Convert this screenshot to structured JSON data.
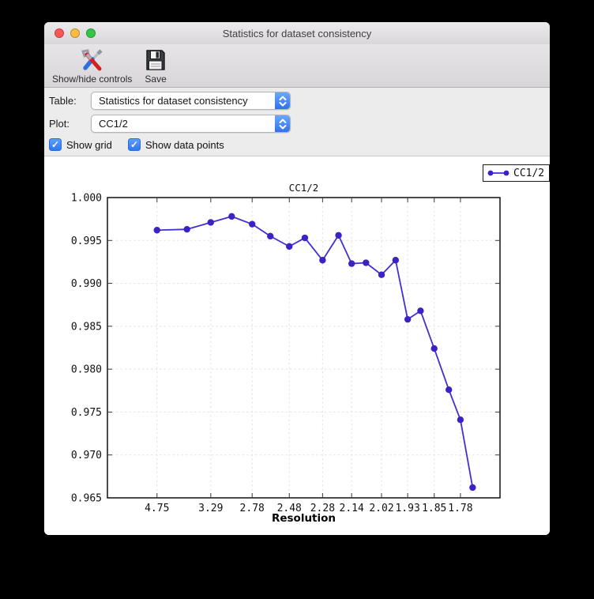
{
  "window": {
    "title": "Statistics for dataset consistency"
  },
  "toolbar": {
    "buttons": [
      {
        "label": "Show/hide controls",
        "icon": "tools-icon"
      },
      {
        "label": "Save",
        "icon": "floppy-disk-icon"
      }
    ]
  },
  "controls": {
    "table": {
      "label": "Table:",
      "value": "Statistics for dataset consistency"
    },
    "plot": {
      "label": "Plot:",
      "value": "CC1/2"
    },
    "checkboxes": [
      {
        "label": "Show grid",
        "checked": true
      },
      {
        "label": "Show data points",
        "checked": true
      }
    ]
  },
  "colors": {
    "line": "#4130d0",
    "marker": "#3a22c4",
    "grid": "#e3e3e3",
    "tick": "#3a3a3a",
    "frame": "#000000",
    "accent_blue": "#3072ef"
  },
  "chart_data": {
    "type": "line",
    "title": "CC1/2",
    "xlabel": "Resolution",
    "legend": {
      "label": "CC1/2",
      "position": "top-right-outside"
    },
    "grid": true,
    "markers": true,
    "x_axis_scale": "1/d^2",
    "x_range_inv_d2": [
      0.0,
      0.351
    ],
    "ylim": [
      0.965,
      1.0
    ],
    "y_ticks": [
      "1.000",
      "0.995",
      "0.990",
      "0.985",
      "0.980",
      "0.975",
      "0.970",
      "0.965"
    ],
    "x_ticks": {
      "labels": [
        "4.75",
        "3.29",
        "2.78",
        "2.48",
        "2.28",
        "2.14",
        "2.02",
        "1.93",
        "1.85",
        "1.78"
      ],
      "resolutions": [
        4.75,
        3.29,
        2.78,
        2.48,
        2.28,
        2.14,
        2.02,
        1.93,
        1.85,
        1.78
      ]
    },
    "series": [
      {
        "name": "CC1/2",
        "x_resolution": [
          4.75,
          3.75,
          3.29,
          3.0,
          2.78,
          2.62,
          2.48,
          2.38,
          2.28,
          2.2,
          2.14,
          2.08,
          2.02,
          1.97,
          1.93,
          1.89,
          1.85,
          1.81,
          1.78,
          1.75
        ],
        "values": [
          0.9962,
          0.9963,
          0.9971,
          0.9978,
          0.9969,
          0.9955,
          0.9943,
          0.9953,
          0.9927,
          0.9956,
          0.9923,
          0.9924,
          0.991,
          0.9927,
          0.9858,
          0.9868,
          0.9824,
          0.9776,
          0.9741,
          0.9662
        ]
      }
    ]
  }
}
